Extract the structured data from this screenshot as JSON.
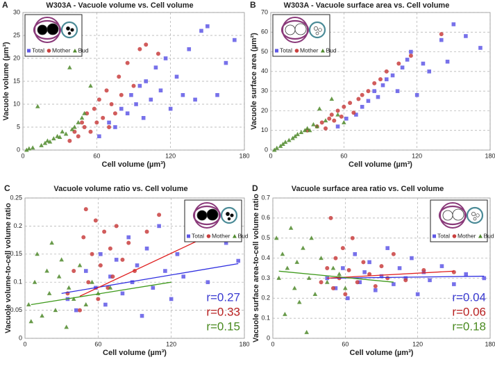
{
  "chart_data": [
    {
      "type": "scatter",
      "panel": "A",
      "title": "W303A - Vacuole volume vs. Cell volume",
      "xlabel": "Cell volume (µm³)",
      "ylabel": "Vacuole volume (µm³)",
      "xlim": [
        0,
        180
      ],
      "xticks": [
        0,
        60,
        120,
        180
      ],
      "ylim": [
        0,
        30
      ],
      "yticks": [
        0,
        5,
        10,
        15,
        20,
        25,
        30
      ],
      "grid": true,
      "legend": "upper left",
      "icon": "filled",
      "series": [
        {
          "name": "Total",
          "color": "#5f58e6",
          "marker": "square",
          "x": [
            62,
            70,
            75,
            80,
            85,
            88,
            92,
            95,
            98,
            100,
            104,
            108,
            112,
            116,
            120,
            125,
            130,
            135,
            140,
            145,
            150,
            158,
            165,
            172
          ],
          "values": [
            3,
            6,
            5,
            9,
            8,
            12,
            10,
            14,
            7,
            15,
            11,
            18,
            13,
            20,
            9,
            16,
            12,
            22,
            11,
            26,
            27,
            12,
            19,
            24
          ]
        },
        {
          "name": "Mother",
          "color": "#c9403f",
          "marker": "circle",
          "x": [
            38,
            42,
            45,
            48,
            50,
            52,
            55,
            58,
            60,
            62,
            65,
            68,
            70,
            72,
            75,
            78,
            80,
            85,
            90,
            95,
            100,
            110
          ],
          "values": [
            2,
            4,
            3,
            6,
            5,
            8,
            4,
            9,
            6,
            11,
            7,
            13,
            5,
            10,
            8,
            16,
            12,
            19,
            14,
            22,
            23,
            21
          ]
        },
        {
          "name": "Bud",
          "color": "#4f8a2c",
          "marker": "triangle",
          "x": [
            3,
            5,
            8,
            12,
            15,
            18,
            20,
            22,
            25,
            28,
            30,
            32,
            35,
            38,
            40,
            42,
            45,
            48,
            50,
            55
          ],
          "values": [
            0,
            0.3,
            0.5,
            9.5,
            1,
            1.5,
            2,
            1.8,
            2.5,
            3,
            2.8,
            4,
            3.5,
            18,
            4.5,
            5,
            6,
            7,
            8,
            14
          ]
        }
      ]
    },
    {
      "type": "scatter",
      "panel": "B",
      "title": "W303A - Vacuole surface area vs. Cell volume",
      "xlabel": "Cell volume (µm³)",
      "ylabel": "Vacuole surface area (µm²)",
      "xlim": [
        0,
        180
      ],
      "xticks": [
        0,
        60,
        120,
        180
      ],
      "ylim": [
        0,
        70
      ],
      "yticks": [
        0,
        10,
        20,
        30,
        40,
        50,
        60,
        70
      ],
      "grid": true,
      "legend": "upper left",
      "icon": "outline",
      "series": [
        {
          "name": "Total",
          "color": "#5f58e6",
          "marker": "square",
          "x": [
            55,
            62,
            70,
            75,
            80,
            85,
            88,
            92,
            95,
            100,
            104,
            108,
            112,
            115,
            120,
            125,
            130,
            140,
            145,
            150,
            160,
            172
          ],
          "values": [
            12,
            16,
            18,
            22,
            25,
            30,
            27,
            33,
            36,
            38,
            30,
            42,
            46,
            50,
            28,
            44,
            40,
            56,
            45,
            64,
            58,
            52
          ]
        },
        {
          "name": "Mother",
          "color": "#c9403f",
          "marker": "circle",
          "x": [
            30,
            38,
            42,
            45,
            48,
            50,
            52,
            55,
            58,
            60,
            65,
            68,
            72,
            75,
            80,
            85,
            90,
            95,
            105,
            115,
            140
          ],
          "values": [
            10,
            12,
            14,
            11,
            16,
            18,
            15,
            20,
            17,
            22,
            24,
            19,
            26,
            28,
            30,
            34,
            36,
            40,
            44,
            48,
            59
          ]
        },
        {
          "name": "Bud",
          "color": "#4f8a2c",
          "marker": "triangle",
          "x": [
            3,
            5,
            8,
            10,
            12,
            15,
            18,
            20,
            22,
            25,
            28,
            30,
            32,
            35,
            38,
            40,
            45,
            50,
            55,
            60
          ],
          "values": [
            0,
            1,
            2,
            3,
            4,
            5,
            6,
            7,
            8,
            9,
            10,
            11,
            10,
            13,
            12,
            21,
            15,
            26,
            18,
            14
          ]
        }
      ]
    },
    {
      "type": "scatter",
      "panel": "C",
      "title": "Vacuole volume ratio vs. Cell volume",
      "xlabel": "Cell volume (µm³)",
      "ylabel": "Vacuole volume-to-cell volume ratio",
      "xlim": [
        0,
        180
      ],
      "xticks": [
        0,
        60,
        120,
        180
      ],
      "ylim": [
        0,
        0.25
      ],
      "yticks": [
        0,
        0.05,
        0.1,
        0.15,
        0.2,
        0.25
      ],
      "grid": true,
      "legend": "upper right",
      "icon": "filled",
      "series": [
        {
          "name": "Total",
          "color": "#5f58e6",
          "marker": "square",
          "x": [
            35,
            42,
            50,
            58,
            62,
            66,
            70,
            75,
            80,
            85,
            88,
            92,
            96,
            100,
            105,
            110,
            115,
            120,
            125,
            130,
            140,
            150,
            165,
            175
          ],
          "values": [
            0.07,
            0.05,
            0.12,
            0.09,
            0.15,
            0.06,
            0.11,
            0.14,
            0.08,
            0.18,
            0.1,
            0.13,
            0.04,
            0.16,
            0.09,
            0.2,
            0.12,
            0.07,
            0.15,
            0.11,
            0.19,
            0.1,
            0.17,
            0.138
          ]
        },
        {
          "name": "Mother",
          "color": "#c9403f",
          "marker": "circle",
          "x": [
            35,
            40,
            45,
            48,
            50,
            52,
            55,
            58,
            60,
            62,
            65,
            68,
            70,
            72,
            75,
            80,
            85,
            90,
            100,
            110
          ],
          "values": [
            0.08,
            0.12,
            0.05,
            0.18,
            0.23,
            0.1,
            0.15,
            0.21,
            0.07,
            0.13,
            0.19,
            0.09,
            0.16,
            0.11,
            0.2,
            0.14,
            0.17,
            0.12,
            0.19,
            0.22
          ]
        },
        {
          "name": "Bud",
          "color": "#4f8a2c",
          "marker": "triangle",
          "x": [
            3,
            5,
            8,
            10,
            14,
            18,
            20,
            22,
            25,
            28,
            30,
            34,
            36,
            40,
            45,
            50,
            55,
            60,
            70
          ],
          "values": [
            0.06,
            0.03,
            0.1,
            0.15,
            0.04,
            0.12,
            0.08,
            0.17,
            0.05,
            0.11,
            0.14,
            0.02,
            0.09,
            0.07,
            0.13,
            0.06,
            0.1,
            0.08,
            0.09
          ]
        }
      ],
      "fit_lines": [
        {
          "color": "#2f2fe0",
          "x": [
            30,
            175
          ],
          "y": [
            0.08,
            0.133
          ]
        },
        {
          "color": "#e02020",
          "x": [
            45,
            140
          ],
          "y": [
            0.075,
            0.172
          ]
        },
        {
          "color": "#3f9a1c",
          "x": [
            5,
            120
          ],
          "y": [
            0.06,
            0.1
          ]
        }
      ],
      "annotations": [
        {
          "text": "r=0.27",
          "color": "#3a3ad0"
        },
        {
          "text": "r=0.33",
          "color": "#b82020"
        },
        {
          "text": "r=0.15",
          "color": "#4a8a20"
        }
      ]
    },
    {
      "type": "scatter",
      "panel": "D",
      "title": "Vacuole surface area ratio vs. Cell volume",
      "xlabel": "Cell volume (µm³)",
      "ylabel": "Vacuole surface area-to-cell volume ratio",
      "xlim": [
        0,
        180
      ],
      "xticks": [
        0,
        60,
        120,
        180
      ],
      "ylim": [
        0,
        0.7
      ],
      "yticks": [
        0,
        0.1,
        0.2,
        0.3,
        0.4,
        0.5,
        0.6,
        0.7
      ],
      "grid": true,
      "legend": "upper right",
      "icon": "outline",
      "series": [
        {
          "name": "Total",
          "color": "#5f58e6",
          "marker": "square",
          "x": [
            45,
            52,
            58,
            62,
            68,
            72,
            76,
            80,
            85,
            90,
            95,
            100,
            105,
            110,
            115,
            120,
            125,
            130,
            140,
            150,
            160,
            175
          ],
          "values": [
            0.3,
            0.25,
            0.35,
            0.2,
            0.42,
            0.28,
            0.33,
            0.38,
            0.24,
            0.31,
            0.45,
            0.27,
            0.35,
            0.3,
            0.4,
            0.22,
            0.33,
            0.29,
            0.36,
            0.27,
            0.32,
            0.3
          ]
        },
        {
          "name": "Mother",
          "color": "#c9403f",
          "marker": "circle",
          "x": [
            40,
            45,
            48,
            50,
            52,
            55,
            58,
            60,
            63,
            66,
            70,
            75,
            80,
            85,
            90,
            95,
            100,
            110,
            125,
            150
          ],
          "values": [
            0.28,
            0.35,
            0.6,
            0.25,
            0.4,
            0.3,
            0.45,
            0.22,
            0.34,
            0.5,
            0.28,
            0.38,
            0.32,
            0.26,
            0.36,
            0.3,
            0.42,
            0.29,
            0.34,
            0.33
          ]
        },
        {
          "name": "Bud",
          "color": "#4f8a2c",
          "marker": "triangle",
          "x": [
            3,
            5,
            8,
            10,
            12,
            15,
            18,
            20,
            22,
            25,
            28,
            30,
            32,
            35,
            40,
            45,
            50,
            55,
            60
          ],
          "values": [
            0.5,
            0.3,
            0.42,
            0.12,
            0.35,
            0.55,
            0.25,
            0.38,
            0.18,
            0.45,
            0.03,
            0.3,
            0.5,
            0.22,
            0.4,
            0.28,
            0.35,
            0.32,
            0.25
          ]
        }
      ],
      "fit_lines": [
        {
          "color": "#2f2fe0",
          "x": [
            48,
            175
          ],
          "y": [
            0.3,
            0.31
          ]
        },
        {
          "color": "#e02020",
          "x": [
            45,
            150
          ],
          "y": [
            0.3,
            0.335
          ]
        },
        {
          "color": "#3f9a1c",
          "x": [
            5,
            100
          ],
          "y": [
            0.335,
            0.28
          ]
        }
      ],
      "annotations": [
        {
          "text": "r=0.04",
          "color": "#3a3ad0"
        },
        {
          "text": "r=0.06",
          "color": "#b82020"
        },
        {
          "text": "r=0.18",
          "color": "#4a8a20"
        }
      ]
    }
  ]
}
